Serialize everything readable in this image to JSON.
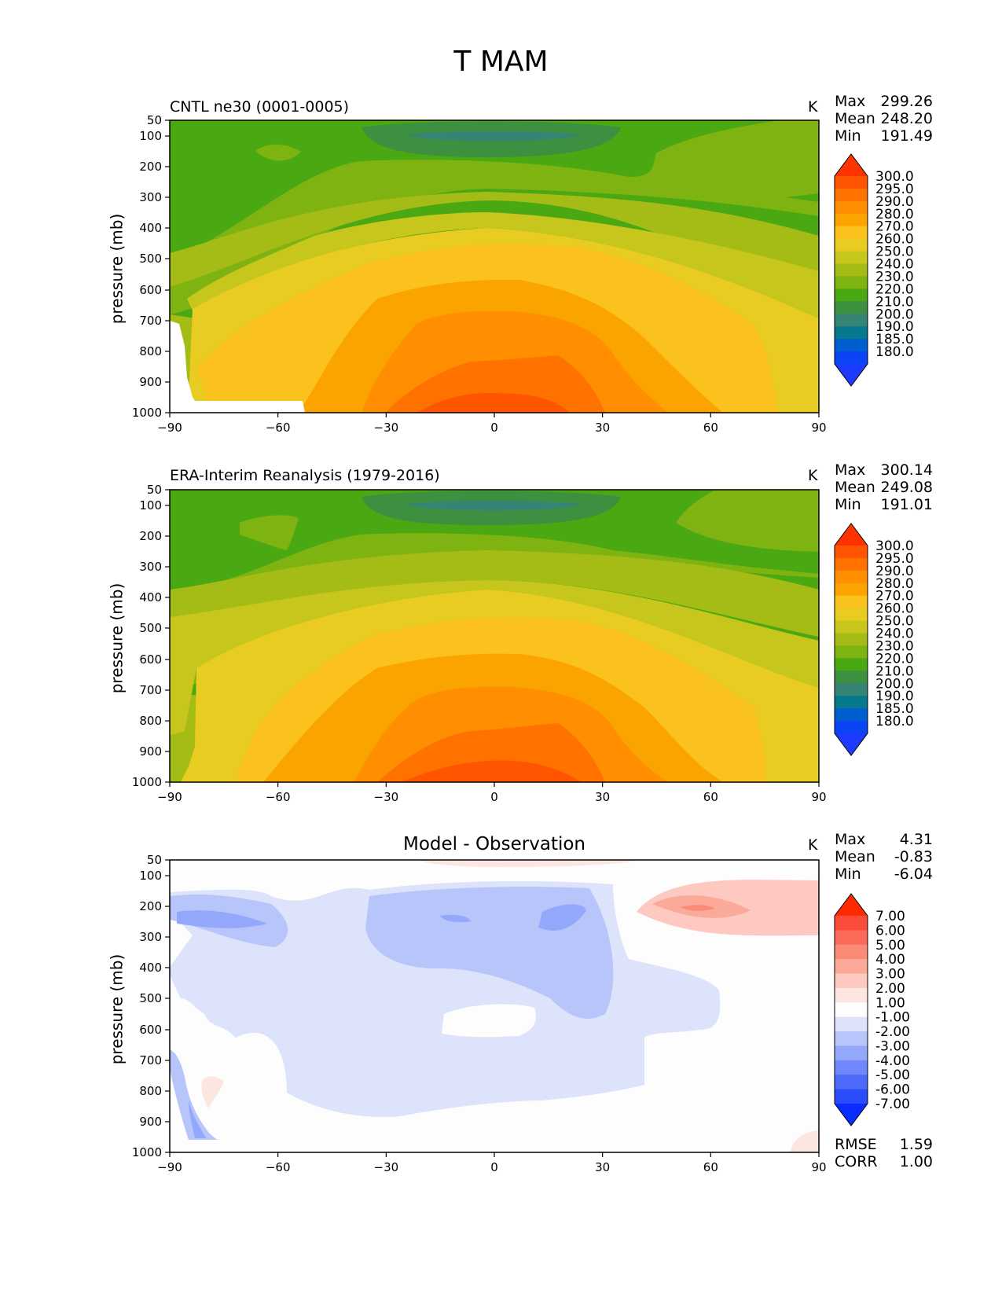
{
  "figure_title": "T MAM",
  "chart_data": [
    {
      "type": "contour",
      "title": "CNTL ne30 (0001-0005)",
      "units": "K",
      "ylabel": "pressure (mb)",
      "xlim": [
        -90,
        90
      ],
      "ylim": [
        1000,
        50
      ],
      "x_ticks": [
        "−90",
        "−60",
        "−30",
        "0",
        "30",
        "60",
        "90"
      ],
      "y_ticks": [
        "50",
        "100",
        "200",
        "300",
        "400",
        "500",
        "600",
        "700",
        "800",
        "900",
        "1000"
      ],
      "stats": [
        {
          "label": "Max",
          "value": "299.26"
        },
        {
          "label": "Mean",
          "value": "248.20"
        },
        {
          "label": "Min",
          "value": "191.49"
        }
      ],
      "colorbar_levels": [
        "300.0",
        "295.0",
        "290.0",
        "280.0",
        "270.0",
        "260.0",
        "250.0",
        "240.0",
        "230.0",
        "220.0",
        "210.0",
        "200.0",
        "190.0",
        "185.0",
        "180.0"
      ],
      "colorbar_colors": [
        "#ff3300",
        "#ff5500",
        "#ff7200",
        "#ff8e00",
        "#fba400",
        "#fbc21e",
        "#e8cc22",
        "#c7c61c",
        "#a6bc16",
        "#7fb312",
        "#4aa813",
        "#3c9040",
        "#368476",
        "#06798e",
        "#005fcf",
        "#0a44f5",
        "#1c3bff"
      ],
      "fill_contours": [
        {
          "level": "220.0",
          "color": "#7fb312"
        },
        {
          "level": "230.0",
          "color": "#a6bc16"
        },
        {
          "level": "240.0",
          "color": "#c7c61c"
        },
        {
          "level": "250.0",
          "color": "#e8cc22"
        },
        {
          "level": "260.0",
          "color": "#fbc21e"
        },
        {
          "level": "270.0",
          "color": "#fba400"
        },
        {
          "level": "280.0",
          "color": "#ff8e00"
        },
        {
          "level": "290.0",
          "color": "#ff7200"
        },
        {
          "level": "295.0",
          "color": "#ff5500"
        }
      ],
      "upper_contours": [
        {
          "level": "210.0",
          "color": "#3c9040"
        },
        {
          "level": "200.0",
          "color": "#368476"
        }
      ],
      "masked_region": "topography near -90 to -52, 700-1000 mb"
    },
    {
      "type": "contour",
      "title": "ERA-Interim Reanalysis (1979-2016)",
      "units": "K",
      "ylabel": "pressure (mb)",
      "xlim": [
        -90,
        90
      ],
      "ylim": [
        1000,
        50
      ],
      "x_ticks": [
        "−90",
        "−60",
        "−30",
        "0",
        "30",
        "60",
        "90"
      ],
      "y_ticks": [
        "50",
        "100",
        "200",
        "300",
        "400",
        "500",
        "600",
        "700",
        "800",
        "900",
        "1000"
      ],
      "stats": [
        {
          "label": "Max",
          "value": "300.14"
        },
        {
          "label": "Mean",
          "value": "249.08"
        },
        {
          "label": "Min",
          "value": "191.01"
        }
      ],
      "colorbar_levels": [
        "300.0",
        "295.0",
        "290.0",
        "280.0",
        "270.0",
        "260.0",
        "250.0",
        "240.0",
        "230.0",
        "220.0",
        "210.0",
        "200.0",
        "190.0",
        "185.0",
        "180.0"
      ],
      "colorbar_colors": [
        "#ff3300",
        "#ff5500",
        "#ff7200",
        "#ff8e00",
        "#fba400",
        "#fbc21e",
        "#e8cc22",
        "#c7c61c",
        "#a6bc16",
        "#7fb312",
        "#4aa813",
        "#3c9040",
        "#368476",
        "#06798e",
        "#005fcf",
        "#0a44f5",
        "#1c3bff"
      ],
      "fill_contours": [
        {
          "level": "220.0",
          "color": "#7fb312"
        },
        {
          "level": "230.0",
          "color": "#a6bc16"
        },
        {
          "level": "240.0",
          "color": "#c7c61c"
        },
        {
          "level": "250.0",
          "color": "#e8cc22"
        },
        {
          "level": "260.0",
          "color": "#fbc21e"
        },
        {
          "level": "270.0",
          "color": "#fba400"
        },
        {
          "level": "280.0",
          "color": "#ff8e00"
        },
        {
          "level": "290.0",
          "color": "#ff7200"
        },
        {
          "level": "295.0",
          "color": "#ff5500"
        }
      ],
      "upper_contours": [
        {
          "level": "210.0",
          "color": "#3c9040"
        },
        {
          "level": "200.0",
          "color": "#368476"
        }
      ]
    },
    {
      "type": "contour",
      "title": "Model - Observation",
      "units": "K",
      "ylabel": "pressure (mb)",
      "xlim": [
        -90,
        90
      ],
      "ylim": [
        1000,
        50
      ],
      "x_ticks": [
        "−90",
        "−60",
        "−30",
        "0",
        "30",
        "60",
        "90"
      ],
      "y_ticks": [
        "50",
        "100",
        "200",
        "300",
        "400",
        "500",
        "600",
        "700",
        "800",
        "900",
        "1000"
      ],
      "stats": [
        {
          "label": "Max",
          "value": "4.31"
        },
        {
          "label": "Mean",
          "value": "-0.83"
        },
        {
          "label": "Min",
          "value": "-6.04"
        }
      ],
      "extra_stats": [
        {
          "label": "RMSE",
          "value": "1.59"
        },
        {
          "label": "CORR",
          "value": "1.00"
        }
      ],
      "colorbar_levels": [
        "7.00",
        "6.00",
        "5.00",
        "4.00",
        "3.00",
        "2.00",
        "1.00",
        "-1.00",
        "-2.00",
        "-3.00",
        "-4.00",
        "-5.00",
        "-6.00",
        "-7.00"
      ],
      "colorbar_colors": [
        "#ff2a00",
        "#fb4c3c",
        "#fb6a57",
        "#fb8a77",
        "#fbaa9a",
        "#fdc9c0",
        "#fde6e2",
        "#fdfdfd",
        "#dce3fb",
        "#b7c5fb",
        "#94a8fb",
        "#6f87fb",
        "#4d6afb",
        "#2a4cfb",
        "#0a2cff"
      ],
      "regions": [
        {
          "name": "stratosphere-warm",
          "color": "#fde6e2"
        },
        {
          "name": "cold-band",
          "color": "#dce3fb"
        },
        {
          "name": "cold-core",
          "color": "#b7c5fb"
        },
        {
          "name": "cold-max",
          "color": "#94a8fb"
        },
        {
          "name": "warm-nh",
          "color": "#fdc9c0"
        },
        {
          "name": "warm-nh-core",
          "color": "#fbaa9a"
        },
        {
          "name": "warm-nh-max",
          "color": "#fb8a77"
        }
      ]
    }
  ]
}
